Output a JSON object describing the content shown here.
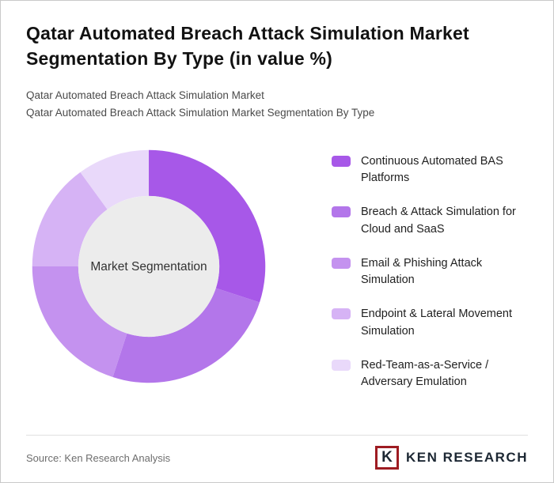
{
  "header": {
    "title": "Qatar Automated Breach Attack Simulation Market Segmentation By Type (in value %)",
    "subtitle1": "Qatar Automated Breach Attack Simulation Market",
    "subtitle2": "Qatar Automated Breach Attack Simulation Market Segmentation By Type"
  },
  "chart_data": {
    "type": "pie",
    "donut": true,
    "title": "Qatar Automated Breach Attack Simulation Market Segmentation By Type (in value %)",
    "center_label": "Market Segmentation",
    "categories": [
      "Continuous Automated BAS Platforms",
      "Breach & Attack Simulation for Cloud and SaaS",
      "Email & Phishing Attack Simulation",
      "Endpoint & Lateral Movement Simulation",
      "Red-Team-as-a-Service / Adversary Emulation"
    ],
    "values": [
      30,
      25,
      20,
      15,
      10
    ],
    "colors": [
      "#a758e8",
      "#b376ea",
      "#c492ef",
      "#d6b3f5",
      "#e9d9fa"
    ],
    "center_fill": "#ececec",
    "legend_position": "right"
  },
  "legend": {
    "items": [
      {
        "label": "Continuous Automated BAS Platforms",
        "color": "#a758e8"
      },
      {
        "label": "Breach & Attack Simulation for Cloud and SaaS",
        "color": "#b376ea"
      },
      {
        "label": "Email & Phishing Attack Simulation",
        "color": "#c492ef"
      },
      {
        "label": "Endpoint & Lateral Movement Simulation",
        "color": "#d6b3f5"
      },
      {
        "label": "Red-Team-as-a-Service / Adversary Emulation",
        "color": "#e9d9fa"
      }
    ]
  },
  "footer": {
    "source": "Source: Ken Research Analysis",
    "brand_mark": "K",
    "brand": "KEN RESEARCH"
  }
}
